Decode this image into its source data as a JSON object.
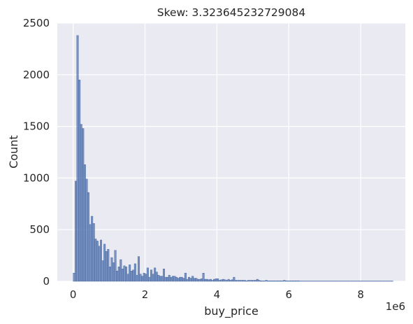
{
  "chart_data": {
    "type": "bar",
    "title": "Skew: 3.323645232729084",
    "xlabel": "buy_price",
    "ylabel": "Count",
    "x_offset_label": "1e6",
    "xlim": [
      -0.44,
      9.24
    ],
    "ylim": [
      0,
      2500
    ],
    "x_ticks": [
      0,
      2,
      4,
      6,
      8
    ],
    "x_tick_labels": [
      "0",
      "2",
      "4",
      "6",
      "8"
    ],
    "y_ticks": [
      0,
      500,
      1000,
      1500,
      2000,
      2500
    ],
    "y_tick_labels": [
      "0",
      "500",
      "1000",
      "1500",
      "2000",
      "2500"
    ],
    "grid": true,
    "bin_width": 0.05,
    "bin_start": 0.0,
    "counts": [
      80,
      970,
      2380,
      1950,
      1520,
      1480,
      1130,
      990,
      860,
      550,
      630,
      560,
      410,
      390,
      340,
      400,
      200,
      360,
      290,
      310,
      140,
      230,
      180,
      300,
      100,
      140,
      210,
      120,
      150,
      140,
      70,
      160,
      100,
      110,
      170,
      60,
      240,
      70,
      50,
      80,
      70,
      130,
      40,
      110,
      70,
      130,
      90,
      60,
      50,
      50,
      120,
      40,
      40,
      60,
      40,
      50,
      50,
      40,
      30,
      40,
      40,
      30,
      80,
      20,
      40,
      30,
      50,
      30,
      30,
      20,
      20,
      25,
      80,
      20,
      20,
      15,
      20,
      10,
      20,
      25,
      25,
      10,
      15,
      20,
      15,
      10,
      20,
      10,
      15,
      40,
      10,
      10,
      10,
      10,
      10,
      10,
      5,
      10,
      10,
      10,
      10,
      10,
      20,
      10,
      5,
      5,
      5,
      10,
      5,
      5,
      5,
      5,
      5,
      5,
      5,
      5,
      5,
      10,
      5,
      5,
      5,
      5,
      5,
      5,
      5,
      5,
      3,
      3,
      3,
      3,
      3,
      3,
      3,
      3,
      3,
      3,
      3,
      3,
      3,
      3,
      3,
      3,
      3,
      3,
      3,
      3,
      3,
      3,
      3,
      3,
      3,
      3,
      3,
      3,
      3,
      3,
      3,
      3,
      3,
      3,
      3,
      3,
      3,
      3,
      3,
      3,
      3,
      3,
      3,
      3,
      3,
      3,
      3,
      3,
      3,
      3,
      3,
      3
    ]
  },
  "colors": {
    "background": "#eaeaf2",
    "grid": "#ffffff",
    "bar_fill": "#4c72b0",
    "bar_edge": "#3b5c94",
    "text": "#262626"
  }
}
